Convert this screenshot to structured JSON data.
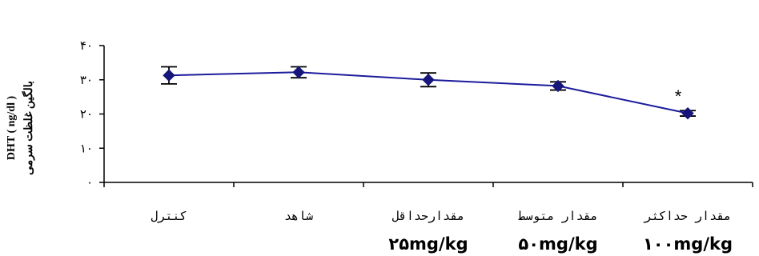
{
  "chart_data": {
    "type": "line",
    "title": "",
    "ylabel_lines": [
      "بالگین غلظت سرمی",
      "DHT ( ng/dl )"
    ],
    "xlabel": "",
    "ylim": [
      0,
      40
    ],
    "y_ticks": [
      0,
      10,
      20,
      30,
      40
    ],
    "y_tick_labels": [
      "۰",
      "۱۰",
      "۲۰",
      "۳۰",
      "۴۰"
    ],
    "categories": [
      "کنترل",
      "شاهد",
      "مقدارحداقل",
      "مقدار متوسط",
      "مقدار حداکثر"
    ],
    "dose_labels": [
      "",
      "",
      "۲۵mg/kg",
      "۵۰mg/kg",
      "۱۰۰mg/kg"
    ],
    "series": [
      {
        "values": [
          31.3,
          32.2,
          30.0,
          28.2,
          20.2
        ],
        "error": [
          2.5,
          1.6,
          2.0,
          1.2,
          0.8
        ]
      }
    ],
    "annotations": [
      {
        "category_index": 4,
        "text": "*"
      }
    ],
    "grid": false,
    "legend": "none",
    "colors": {
      "line": "#1c1c9c",
      "marker": "#15157a",
      "axis": "#000000"
    }
  }
}
